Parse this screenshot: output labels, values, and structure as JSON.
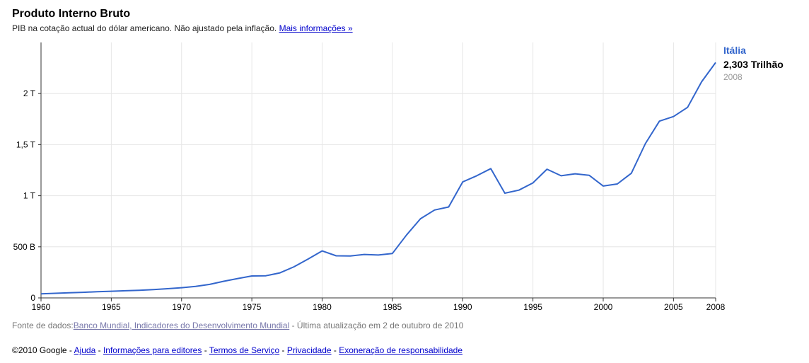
{
  "header": {
    "title": "Produto Interno Bruto",
    "subtitle": "PIB na cotação actual do dólar americano. Não ajustado pela inflação.",
    "more_info_link": "Mais informações »"
  },
  "legend": {
    "series_name": "Itália",
    "value": "2,303 Trilhão",
    "year": "2008"
  },
  "source": {
    "prefix": "Fonte de dados:",
    "link": "Banco Mundial, Indicadores do Desenvolvimento Mundial",
    "suffix": " - Última atualização em 2 de outubro de 2010"
  },
  "footer": {
    "copyright": "©2010 Google - ",
    "links": [
      "Ajuda",
      "Informações para editores",
      "Termos de Serviço",
      "Privacidade",
      "Exoneração de responsabilidade"
    ],
    "separator": " - "
  },
  "colors": {
    "series": "#3366cc",
    "grid": "#e6e6e6",
    "axis": "#333333"
  },
  "chart_data": {
    "type": "line",
    "title": "Produto Interno Bruto",
    "xlabel": "",
    "ylabel": "",
    "xlim": [
      1960,
      2008
    ],
    "ylim": [
      0,
      2500
    ],
    "grid": true,
    "y_ticks": [
      {
        "value": 0,
        "label": "0"
      },
      {
        "value": 500,
        "label": "500 B"
      },
      {
        "value": 1000,
        "label": "1 T"
      },
      {
        "value": 1500,
        "label": "1,5 T"
      },
      {
        "value": 2000,
        "label": "2 T"
      }
    ],
    "x_ticks": [
      {
        "value": 1960,
        "label": "1960"
      },
      {
        "value": 1965,
        "label": "1965"
      },
      {
        "value": 1970,
        "label": "1970"
      },
      {
        "value": 1975,
        "label": "1975"
      },
      {
        "value": 1980,
        "label": "1980"
      },
      {
        "value": 1985,
        "label": "1985"
      },
      {
        "value": 1990,
        "label": "1990"
      },
      {
        "value": 1995,
        "label": "1995"
      },
      {
        "value": 2000,
        "label": "2000"
      },
      {
        "value": 2005,
        "label": "2005"
      },
      {
        "value": 2008,
        "label": "2008"
      }
    ],
    "series": [
      {
        "name": "Itália",
        "x": [
          1960,
          1961,
          1962,
          1963,
          1964,
          1965,
          1966,
          1967,
          1968,
          1969,
          1970,
          1971,
          1972,
          1973,
          1974,
          1975,
          1976,
          1977,
          1978,
          1979,
          1980,
          1981,
          1982,
          1983,
          1984,
          1985,
          1986,
          1987,
          1988,
          1989,
          1990,
          1991,
          1992,
          1993,
          1994,
          1995,
          1996,
          1997,
          1998,
          1999,
          2000,
          2001,
          2002,
          2003,
          2004,
          2005,
          2006,
          2007,
          2008
        ],
        "values": [
          40,
          45,
          50,
          55,
          60,
          65,
          70,
          75,
          82,
          90,
          100,
          112,
          132,
          163,
          190,
          215,
          217,
          245,
          305,
          380,
          460,
          412,
          410,
          425,
          420,
          435,
          615,
          775,
          860,
          890,
          1135,
          1195,
          1265,
          1025,
          1055,
          1125,
          1260,
          1195,
          1215,
          1200,
          1095,
          1115,
          1220,
          1510,
          1730,
          1775,
          1865,
          2115,
          2303
        ]
      }
    ]
  }
}
